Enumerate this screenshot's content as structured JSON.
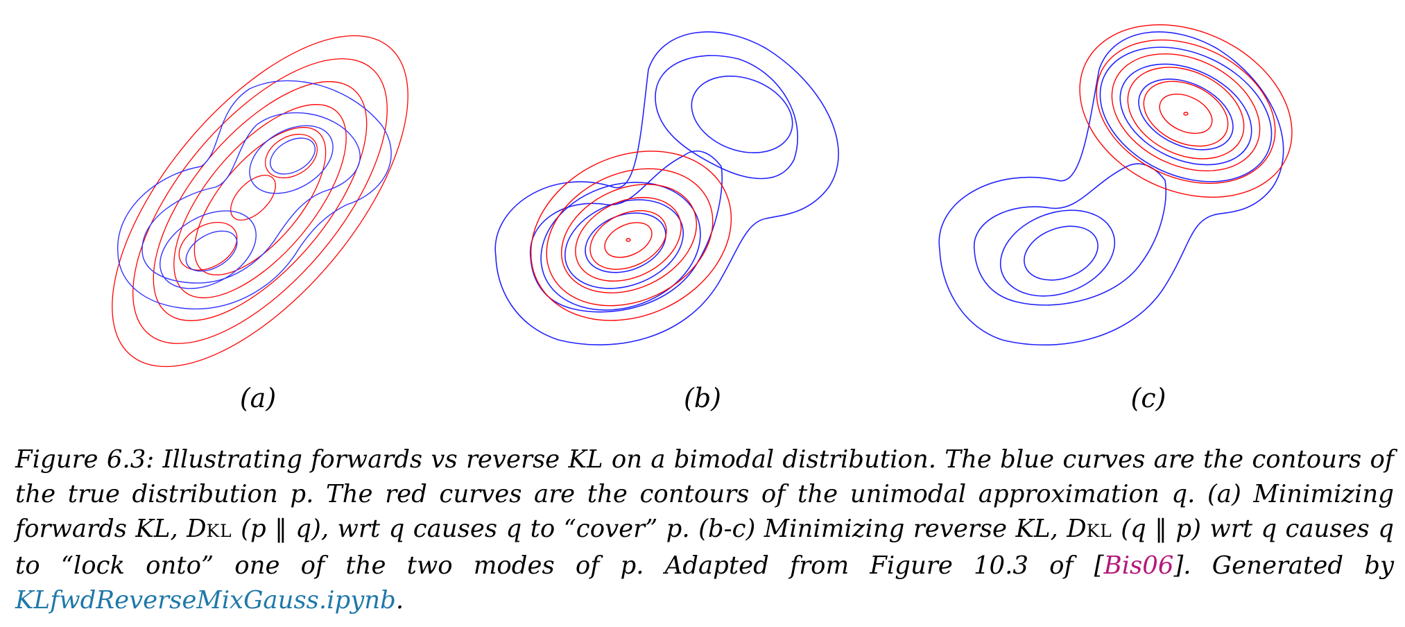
{
  "panels": [
    {
      "label": "(a)"
    },
    {
      "label": "(b)"
    },
    {
      "label": "(c)"
    }
  ],
  "colors": {
    "true_distribution_p": "#0000ff",
    "approximation_q": "#ff0000"
  },
  "caption": {
    "part1": "Figure 6.3: Illustrating forwards vs reverse KL on a bimodal distribution. The blue curves are the contours of the true distribution p. The red curves are the contours of the unimodal approximation q. (a) Minimizing forwards KL, D",
    "kl1": "KL",
    "part2": " (p ‖ q), wrt q causes q to “cover” p. (b-c) Minimizing reverse KL, D",
    "kl2": "KL",
    "part3": " (q ‖ p) wrt q causes q to “lock onto” one of the two modes of p. Adapted from Figure 10.3 of [",
    "cite": "Bis06",
    "part4": "]. Generated by ",
    "link": "KLfwdReverseMixGauss.ipynb",
    "part5": "."
  }
}
